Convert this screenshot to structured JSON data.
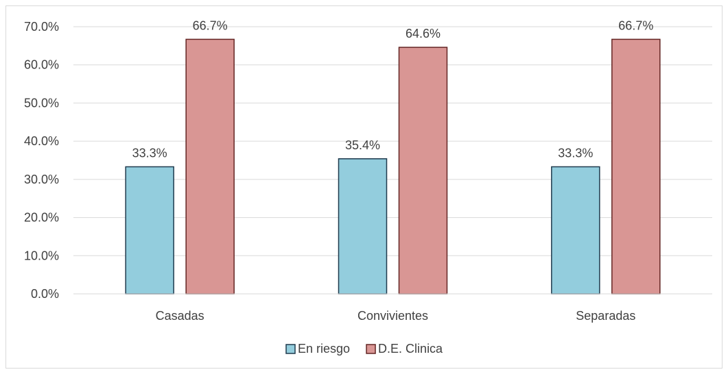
{
  "chart_data": {
    "type": "bar",
    "categories": [
      "Casadas",
      "Convivientes",
      "Separadas"
    ],
    "series": [
      {
        "name": "En riesgo",
        "values": [
          33.3,
          35.4,
          33.3
        ],
        "labels": [
          "33.3%",
          "35.4%",
          "33.3%"
        ],
        "color": "#93CDDD",
        "border_color": "#1F3A4D"
      },
      {
        "name": "D.E. Clinica",
        "values": [
          66.7,
          64.6,
          66.7
        ],
        "labels": [
          "66.7%",
          "64.6%",
          "66.7%"
        ],
        "color": "#D99694",
        "border_color": "#632523"
      }
    ],
    "y_ticks": [
      "0.0%",
      "10.0%",
      "20.0%",
      "30.0%",
      "40.0%",
      "50.0%",
      "60.0%",
      "70.0%"
    ],
    "ylim": [
      0,
      70
    ],
    "grid": true,
    "legend_position": "bottom",
    "title": "",
    "xlabel": "",
    "ylabel": ""
  }
}
